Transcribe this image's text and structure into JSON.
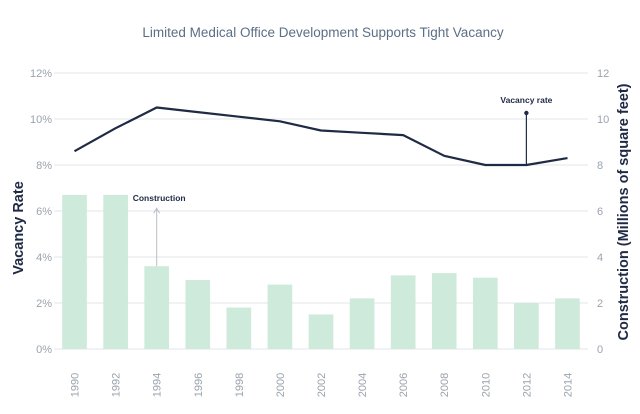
{
  "chart_data": {
    "type": "bar",
    "title": "Limited Medical Office Development Supports Tight Vacancy",
    "categories": [
      "1990",
      "1992",
      "1994",
      "1996",
      "1998",
      "2000",
      "2002",
      "2004",
      "2006",
      "2008",
      "2010",
      "2012",
      "2014"
    ],
    "series": [
      {
        "name": "Construction",
        "type": "bar",
        "axis": "right",
        "values": [
          6.7,
          6.7,
          3.6,
          3.0,
          1.8,
          2.8,
          1.5,
          2.2,
          3.2,
          3.3,
          3.1,
          2.0,
          2.2
        ],
        "color": "#cdeadb"
      },
      {
        "name": "Vacancy rate",
        "type": "line",
        "axis": "left",
        "values": [
          8.6,
          9.6,
          10.5,
          10.3,
          10.1,
          9.9,
          9.5,
          9.4,
          9.3,
          8.4,
          8.0,
          8.0,
          8.3
        ],
        "color": "#1f2a44"
      }
    ],
    "y_left": {
      "label": "Vacancy Rate",
      "lim": [
        0,
        12
      ],
      "ticks": [
        "0%",
        "2%",
        "4%",
        "6%",
        "8%",
        "10%",
        "12%"
      ],
      "tick_values": [
        0,
        2,
        4,
        6,
        8,
        10,
        12
      ]
    },
    "y_right": {
      "label": "Construction (Millions of square feet)",
      "lim": [
        0,
        12
      ],
      "ticks": [
        "0",
        "2",
        "4",
        "6",
        "8",
        "10",
        "12"
      ],
      "tick_values": [
        0,
        2,
        4,
        6,
        8,
        10,
        12
      ]
    },
    "annotations": [
      {
        "text": "Construction",
        "category": "1994",
        "series": "Construction"
      },
      {
        "text": "Vacancy rate",
        "category": "2012",
        "series": "Vacancy rate"
      }
    ],
    "grid": true,
    "colors": {
      "grid": "#e3e6ea",
      "axis_text": "#9aa3ad",
      "title": "#5b6f86",
      "dark": "#1f2a44"
    }
  }
}
